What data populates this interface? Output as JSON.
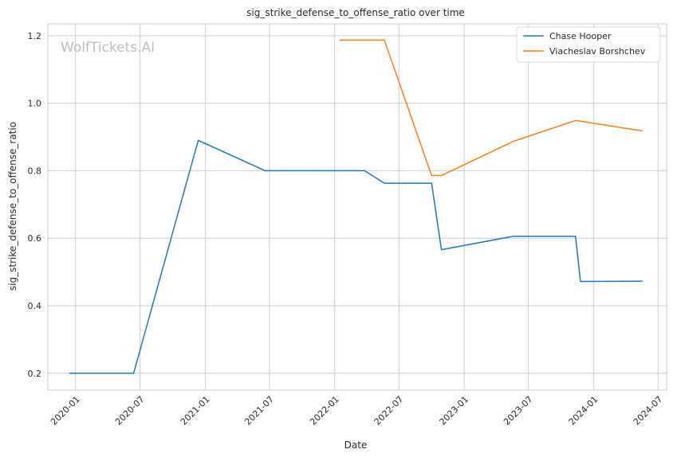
{
  "chart_data": {
    "type": "line",
    "title": "sig_strike_defense_to_offense_ratio over time",
    "xlabel": "Date",
    "ylabel": "sig_strike_defense_to_offense_ratio",
    "watermark": "WolfTickets.AI",
    "xlim": [
      "2019-10-15",
      "2024-07-25"
    ],
    "ylim": [
      0.15,
      1.235
    ],
    "x_ticks": [
      "2020-01",
      "2020-07",
      "2021-01",
      "2021-07",
      "2022-01",
      "2022-07",
      "2023-01",
      "2023-07",
      "2024-01",
      "2024-07"
    ],
    "y_ticks": [
      0.2,
      0.4,
      0.6,
      0.8,
      1.0,
      1.2
    ],
    "y_tick_labels": [
      "0.2",
      "0.4",
      "0.6",
      "0.8",
      "1.0",
      "1.2"
    ],
    "grid": true,
    "legend": "top-right",
    "series": [
      {
        "name": "Chase Hooper",
        "color": "#1f77b4",
        "x": [
          "2019-12-14",
          "2020-06-13",
          "2020-12-12",
          "2021-06-19",
          "2022-03-26",
          "2022-05-21",
          "2022-10-01",
          "2022-10-29",
          "2023-05-20",
          "2023-11-11",
          "2023-11-25",
          "2024-05-18"
        ],
        "y": [
          0.2,
          0.2,
          0.89,
          0.8,
          0.8,
          0.763,
          0.763,
          0.566,
          0.606,
          0.606,
          0.472,
          0.473
        ]
      },
      {
        "name": "Viacheslav Borshchev",
        "color": "#ff7f0e",
        "x": [
          "2022-01-15",
          "2022-05-21",
          "2022-10-01",
          "2022-10-29",
          "2023-05-20",
          "2023-11-11",
          "2024-05-18"
        ],
        "y": [
          1.187,
          1.187,
          0.786,
          0.786,
          0.887,
          0.949,
          0.918
        ]
      }
    ]
  }
}
